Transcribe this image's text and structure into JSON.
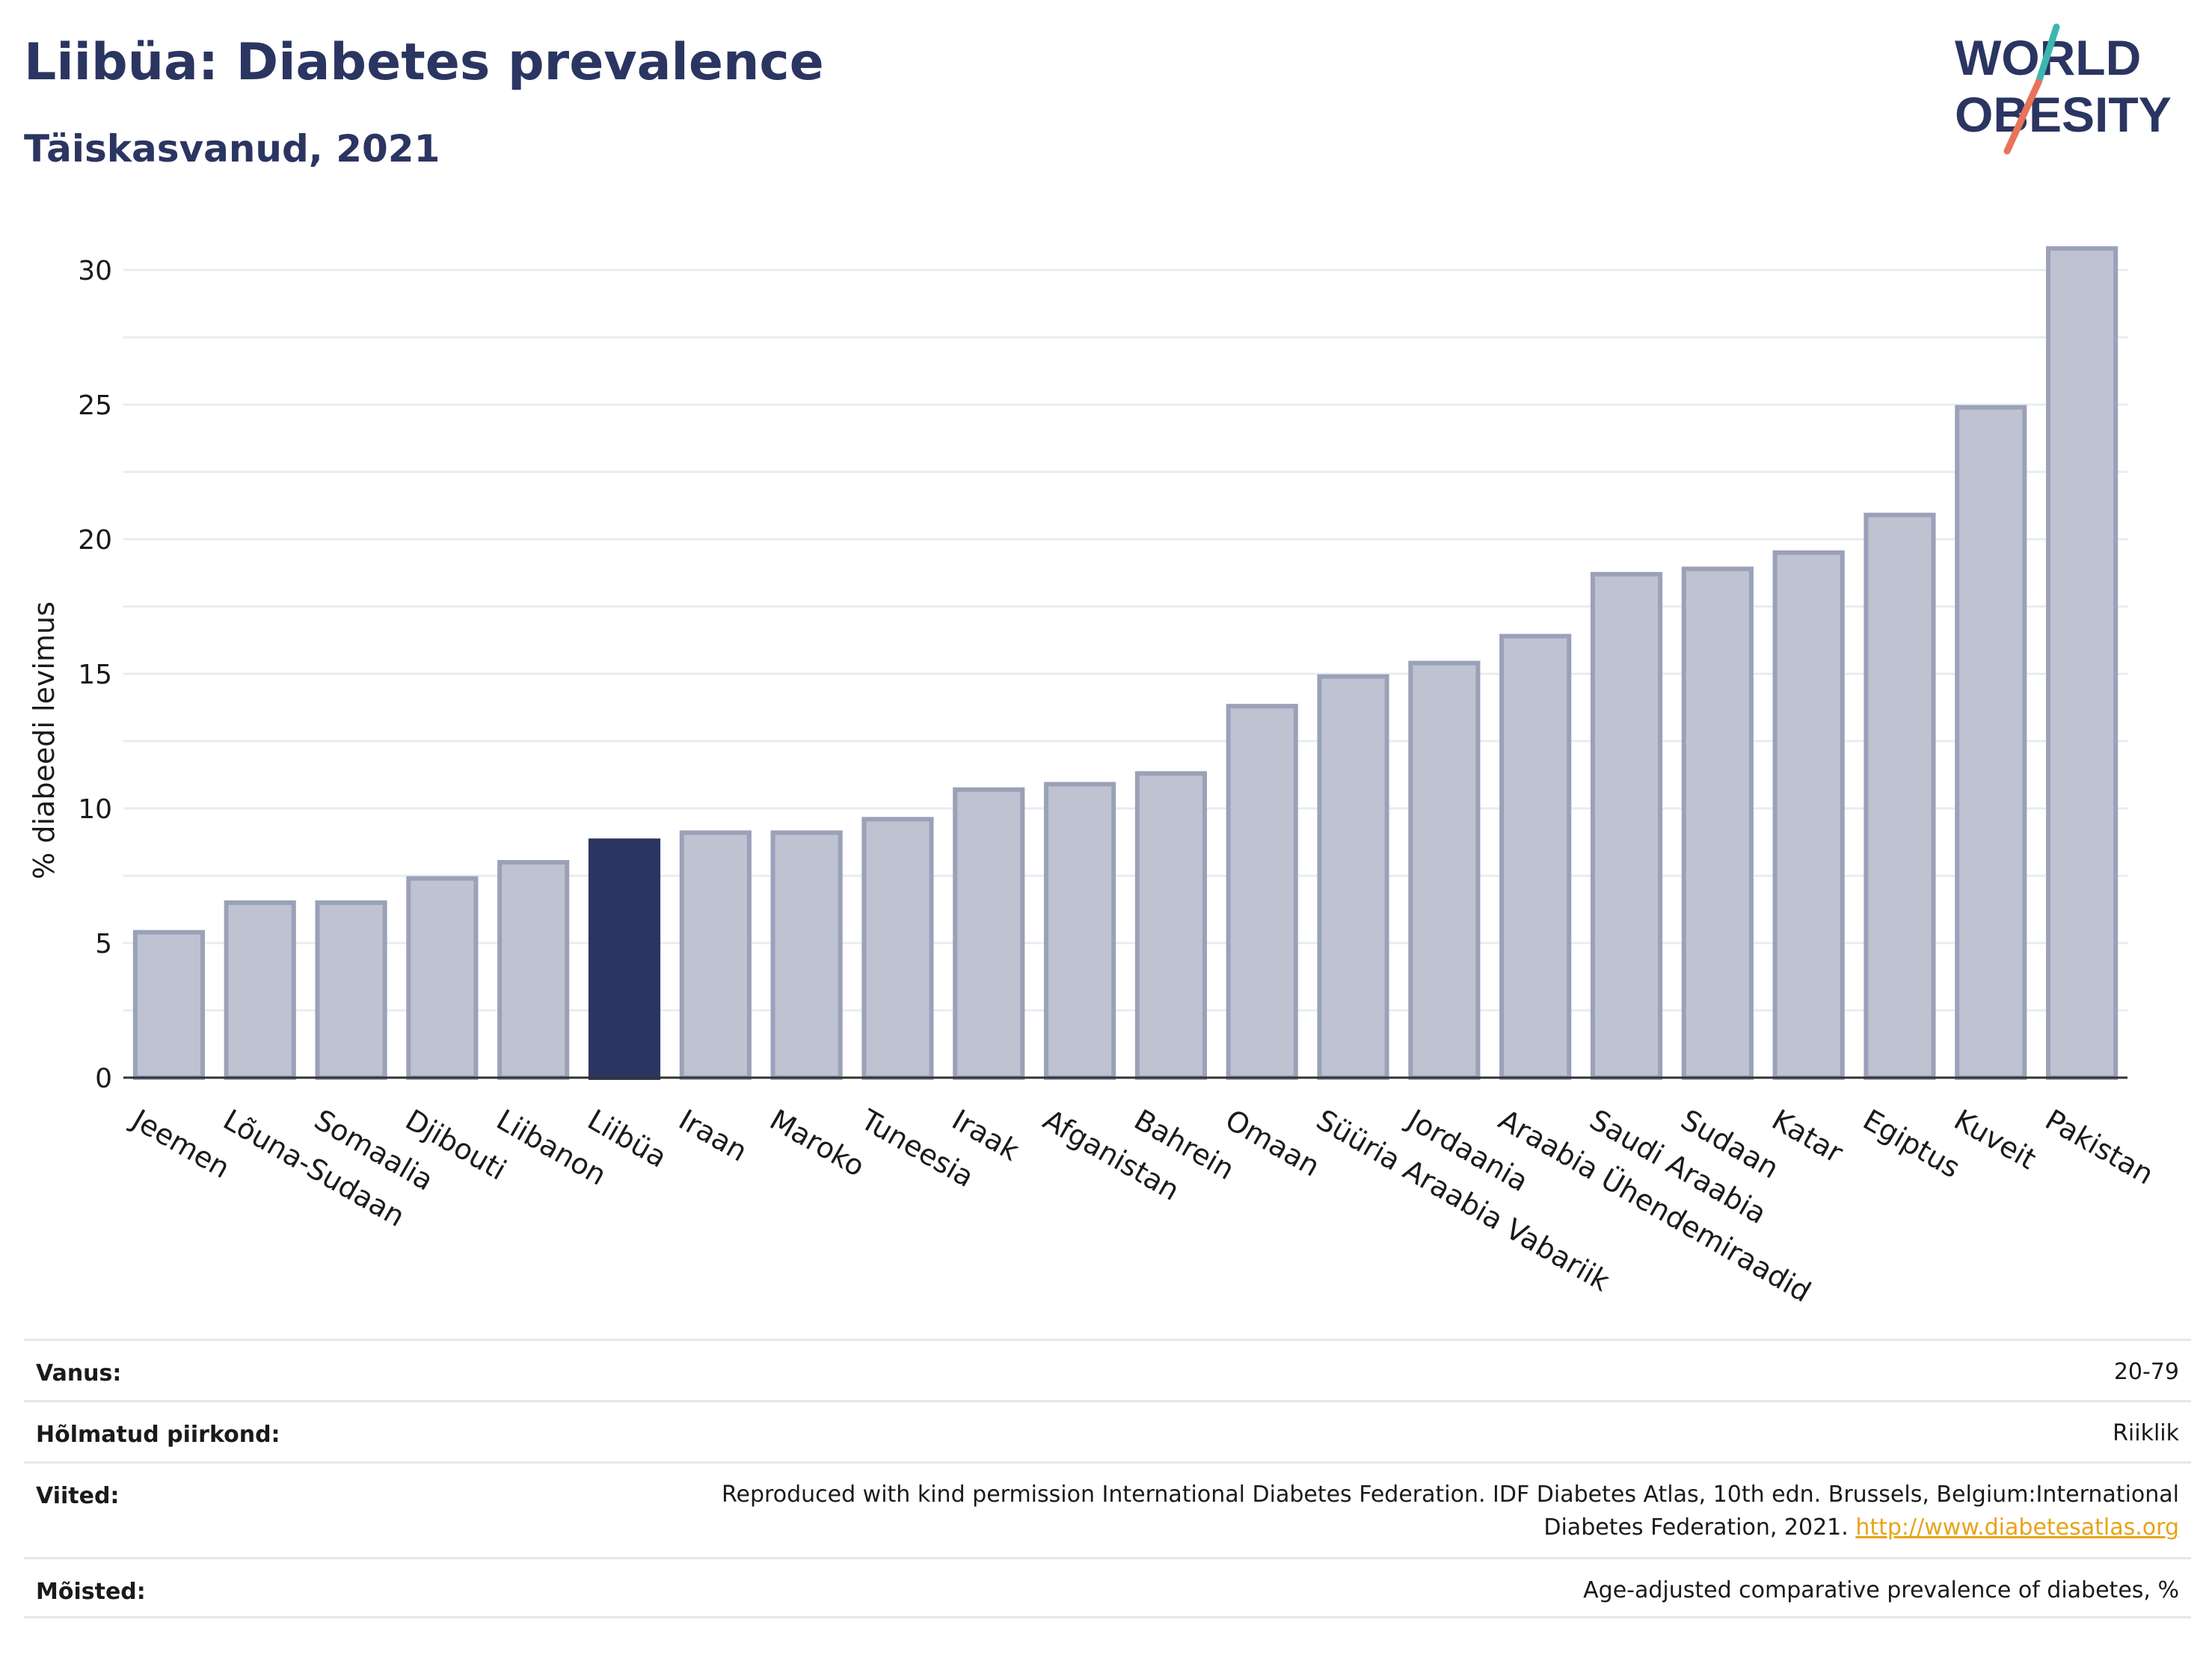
{
  "header": {
    "title": "Liibüa: Diabetes prevalence",
    "subtitle": "Täiskasvanud, 2021"
  },
  "logo": {
    "line1": "WORLD",
    "line2": "OBESITY",
    "color_text": "#2b3561",
    "color_teal": "#3bb6b0",
    "color_coral": "#e8735a"
  },
  "chart_data": {
    "type": "bar",
    "ylabel": "% diabeedi levimus",
    "xlabel": "",
    "ylim": [
      0,
      32
    ],
    "yticks": [
      0,
      5,
      10,
      15,
      20,
      25,
      30
    ],
    "grid": true,
    "highlight": "Liibüa",
    "colors": {
      "bar": "#bfc3d1",
      "bar_border": "#9aa1b8",
      "highlight": "#2b3561",
      "grid": "#e8ecf1"
    },
    "categories": [
      "Jeemen",
      "Lõuna-Sudaan",
      "Somaalia",
      "Djibouti",
      "Liibanon",
      "Liibüa",
      "Iraan",
      "Maroko",
      "Tuneesia",
      "Iraak",
      "Afganistan",
      "Bahrein",
      "Omaan",
      "Süüria Araabia Vabariik",
      "Jordaania",
      "Araabia Ühendemiraadid",
      "Saudi Araabia",
      "Sudaan",
      "Katar",
      "Egiptus",
      "Kuveit",
      "Pakistan"
    ],
    "values": [
      5.4,
      6.5,
      6.5,
      7.4,
      8.0,
      8.8,
      9.1,
      9.1,
      9.6,
      10.7,
      10.9,
      11.3,
      13.8,
      14.9,
      15.4,
      16.4,
      18.7,
      18.9,
      19.5,
      20.9,
      24.9,
      30.8
    ]
  },
  "meta": {
    "age_label": "Vanus:",
    "age_value": "20-79",
    "region_label": "Hõlmatud piirkond:",
    "region_value": "Riiklik",
    "refs_label": "Viited:",
    "refs_line1": "Reproduced with kind permission International Diabetes Federation.  IDF Diabetes Atlas, 10th edn. Brussels, Belgium:International",
    "refs_line2": "Diabetes Federation, 2021.",
    "refs_link": "http://www.diabetesatlas.org",
    "def_label": "Mõisted:",
    "def_value": "Age-adjusted comparative prevalence of diabetes, %"
  }
}
